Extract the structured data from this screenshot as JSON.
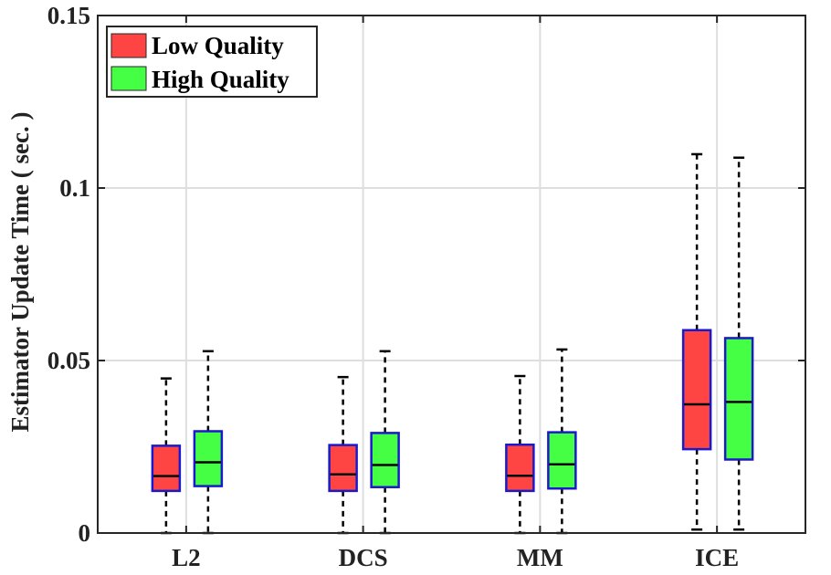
{
  "chart_data": {
    "type": "boxplot",
    "title": "",
    "xlabel": "",
    "ylabel": "Estimator Update Time ( sec. )",
    "ylim": [
      0,
      0.15
    ],
    "yticks": [
      0,
      0.05,
      0.1,
      0.15
    ],
    "ytick_labels": [
      "0",
      "0.05",
      "0.1",
      "0.15"
    ],
    "categories": [
      "L2",
      "DCS",
      "MM",
      "ICE"
    ],
    "grid": true,
    "legend_position": "top-left",
    "series": [
      {
        "name": "Low Quality",
        "color": "#ff4444",
        "boxes": [
          {
            "whisker_low": 0.0,
            "q1": 0.0122,
            "median": 0.0165,
            "q3": 0.0253,
            "whisker_high": 0.0448
          },
          {
            "whisker_low": 0.0,
            "q1": 0.0122,
            "median": 0.017,
            "q3": 0.0255,
            "whisker_high": 0.0452
          },
          {
            "whisker_low": 0.0,
            "q1": 0.0122,
            "median": 0.0166,
            "q3": 0.0256,
            "whisker_high": 0.0455
          },
          {
            "whisker_low": 0.001,
            "q1": 0.0243,
            "median": 0.0373,
            "q3": 0.0588,
            "whisker_high": 0.1098
          }
        ]
      },
      {
        "name": "High Quality",
        "color": "#44ff44",
        "boxes": [
          {
            "whisker_low": 0.0,
            "q1": 0.0136,
            "median": 0.0205,
            "q3": 0.0295,
            "whisker_high": 0.0527
          },
          {
            "whisker_low": 0.0,
            "q1": 0.0133,
            "median": 0.0197,
            "q3": 0.029,
            "whisker_high": 0.0527
          },
          {
            "whisker_low": 0.0,
            "q1": 0.0129,
            "median": 0.0199,
            "q3": 0.0292,
            "whisker_high": 0.0532
          },
          {
            "whisker_low": 0.001,
            "q1": 0.0213,
            "median": 0.038,
            "q3": 0.0565,
            "whisker_high": 0.1088
          }
        ]
      }
    ],
    "box_edge_color": "#1a1acc",
    "whisker_color": "#000000"
  }
}
